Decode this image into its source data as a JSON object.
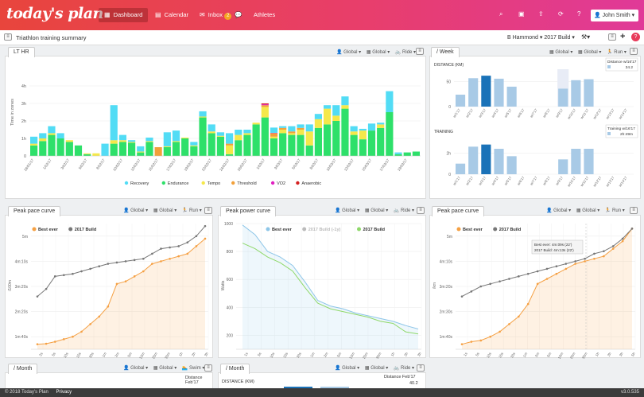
{
  "nav": {
    "logo": "today's plan",
    "dashboard": "Dashboard",
    "calendar": "Calendar",
    "inbox": "Inbox",
    "inbox_count": "2",
    "athletes": "Athletes",
    "user": "John Smith"
  },
  "header": {
    "title": "Triathlon training summary",
    "athlete": "B Hammond",
    "plan": "2017 Build"
  },
  "controls": {
    "global": "Global",
    "ride": "Ride",
    "run": "Run",
    "swim": "Swim"
  },
  "lt_panel": {
    "tab": "LT HR",
    "ylabel": "Time in zones",
    "chart_data": {
      "type": "bar",
      "stacked": true,
      "categories": [
        "28/01/17",
        "29/01/17",
        "1/02/17",
        "2/02/17",
        "3/02/17",
        "4/02/17",
        "5/02/17",
        "7/02/17",
        "8/02/17",
        "9/02/17",
        "10/02/17",
        "11/02/17",
        "12/02/17",
        "14/02/17",
        "15/02/17",
        "16/02/17",
        "17/02/17",
        "18/02/17",
        "19/02/17",
        "21/02/17",
        "22/02/17",
        "23/02/17",
        "24/02/17",
        "25/02/17",
        "26/02/17",
        "28/02/17",
        "1/03/17",
        "2/03/17",
        "3/03/17",
        "4/03/17",
        "5/03/17",
        "7/03/17",
        "8/03/17",
        "9/03/17",
        "10/03/17",
        "11/03/17",
        "12/03/17",
        "14/03/17",
        "15/03/17",
        "16/03/17",
        "17/03/17",
        "18/03/17",
        "19/03/17",
        "20/03/17"
      ],
      "tick_labels": [
        "28/01/17",
        "",
        "1/02/17",
        "",
        "3/02/17",
        "",
        "5/02/17",
        "",
        "8/02/17",
        "",
        "10/02/17",
        "",
        "12/02/17",
        "",
        "15/02/17",
        "",
        "17/02/17",
        "",
        "19/02/17",
        "",
        "22/02/17",
        "",
        "24/02/17",
        "",
        "26/02/17",
        "",
        "1/03/17",
        "",
        "3/03/17",
        "",
        "5/03/17",
        "",
        "8/03/17",
        "",
        "10/03/17",
        "",
        "12/03/17",
        "",
        "15/03/17",
        "",
        "17/03/17",
        "",
        "19/03/17",
        ""
      ],
      "yticks": [
        {
          "v": 0,
          "l": "0"
        },
        {
          "v": 1,
          "l": "1h"
        },
        {
          "v": 2,
          "l": "2h"
        },
        {
          "v": 3,
          "l": "3h"
        },
        {
          "v": 4,
          "l": "4h"
        }
      ],
      "ylim": [
        0,
        5
      ],
      "series": [
        {
          "name": "Endurance",
          "color": "#2ee06a",
          "values": [
            0.6,
            0.85,
            1.2,
            1.0,
            0.8,
            0.6,
            0.1,
            0,
            0,
            0.7,
            0.8,
            0.75,
            0.2,
            0.8,
            0,
            0.5,
            0.8,
            1.0,
            0.55,
            2.2,
            1.3,
            1.1,
            0.1,
            0.9,
            1.2,
            1.8,
            2.2,
            1.0,
            1.3,
            1.2,
            1.2,
            0.6,
            1.6,
            1.8,
            2.0,
            2.7,
            1.2,
            0.95,
            1.45,
            1.6,
            2.5,
            0.1,
            0.2,
            0.25
          ],
          "name_2": ""
        },
        {
          "name": "Tempo",
          "color": "#f5e84a",
          "values": [
            0.1,
            0.15,
            0.1,
            0.0,
            0.1,
            0.0,
            0.05,
            0.15,
            0,
            0.2,
            0.1,
            0.05,
            0.05,
            0.05,
            0,
            0.05,
            0.05,
            0.05,
            0.05,
            0.05,
            0.1,
            0.05,
            0.5,
            0.3,
            0.1,
            0.1,
            0.6,
            0.1,
            0.2,
            0.1,
            0.3,
            0.8,
            0.5,
            0.9,
            0.3,
            0.2,
            0.2,
            0.5,
            0,
            0.2,
            0,
            0,
            0,
            0
          ]
        },
        {
          "name": "Threshold",
          "color": "#f2a03a",
          "values": [
            0,
            0,
            0,
            0,
            0,
            0,
            0,
            0,
            0,
            0,
            0,
            0,
            0,
            0,
            0.5,
            0,
            0,
            0,
            0,
            0,
            0,
            0,
            0.1,
            0,
            0,
            0,
            0.1,
            0.2,
            0.1,
            0.1,
            0.1,
            0,
            0,
            0,
            0,
            0,
            0,
            0,
            0,
            0,
            0,
            0,
            0,
            0
          ]
        },
        {
          "name": "VO2",
          "color": "#e020c0",
          "values": [
            0,
            0,
            0,
            0,
            0,
            0,
            0,
            0,
            0,
            0,
            0,
            0,
            0,
            0,
            0,
            0,
            0,
            0,
            0,
            0,
            0,
            0,
            0,
            0,
            0,
            0,
            0.05,
            0.02,
            0,
            0,
            0,
            0,
            0,
            0,
            0,
            0,
            0,
            0,
            0,
            0,
            0,
            0,
            0,
            0
          ]
        },
        {
          "name": "Anaerobic",
          "color": "#d42020",
          "values": [
            0,
            0,
            0,
            0,
            0,
            0,
            0,
            0,
            0,
            0,
            0,
            0,
            0,
            0,
            0,
            0,
            0,
            0,
            0,
            0,
            0,
            0,
            0,
            0,
            0,
            0,
            0.05,
            0,
            0,
            0,
            0,
            0,
            0,
            0,
            0,
            0,
            0,
            0,
            0,
            0,
            0,
            0,
            0,
            0
          ]
        },
        {
          "name": "Recovery",
          "color": "#52dcf5",
          "values": [
            0.4,
            0.3,
            0.4,
            0.3,
            0,
            0,
            0,
            0,
            0.7,
            2.0,
            0.3,
            0.1,
            0.3,
            0.2,
            0,
            0.8,
            0.6,
            0.0,
            0.2,
            0.3,
            0.4,
            0.2,
            0.6,
            0.3,
            0.2,
            0,
            0,
            0.3,
            0.1,
            0.3,
            0.2,
            0.4,
            0.3,
            0.2,
            0.6,
            0.5,
            0.3,
            0.1,
            0.4,
            0.1,
            1.2,
            0.1,
            0,
            0
          ]
        }
      ],
      "legend": [
        "Recovery",
        "Endurance",
        "Tempo",
        "Threshold",
        "VO2",
        "Anaerobic"
      ]
    }
  },
  "week_panel": {
    "tab": "/ Week",
    "distance": {
      "label": "DISTANCE (KM)",
      "tooltip_title": "Distance w/16'17",
      "tooltip_value": "34.2",
      "chart_data": {
        "type": "bar",
        "categories": [
          "w/1'17",
          "w/2'17",
          "w/3'17",
          "w/4'17",
          "w/5'17",
          "w/6'17",
          "w/7'17",
          "w/8'17",
          "w/9'17",
          "w/10'17",
          "w/11'17",
          "w/12'17",
          "w/13'17",
          "w/14'17"
        ],
        "values": [
          24,
          57,
          62,
          56,
          40,
          0,
          0,
          0,
          36,
          53,
          55,
          0,
          0,
          0
        ],
        "highlight": 2,
        "hover": 8,
        "yticks": [
          {
            "v": 0,
            "l": "0"
          },
          {
            "v": 50,
            "l": "50"
          }
        ],
        "ylim": [
          0,
          75
        ]
      }
    },
    "training": {
      "label": "TRAINING",
      "tooltip_title": "Training w/16'17",
      "tooltip_value": "2h:49m",
      "chart_data": {
        "type": "bar",
        "categories": [
          "w/1'17",
          "w/2'17",
          "w/3'17",
          "w/4'17",
          "w/5'17",
          "w/6'17",
          "w/7'17",
          "w/8'17",
          "w/9'17",
          "w/10'17",
          "w/11'17",
          "w/12'17",
          "w/13'17",
          "w/14'17"
        ],
        "values": [
          1.0,
          2.6,
          2.8,
          2.4,
          1.7,
          0,
          0,
          0,
          1.4,
          2.4,
          2.4,
          0,
          0,
          0
        ],
        "highlight": 2,
        "yticks": [
          {
            "v": 0,
            "l": "0"
          },
          {
            "v": 2,
            "l": "2h"
          }
        ],
        "ylim": [
          0,
          3.6
        ]
      }
    }
  },
  "pace1": {
    "tab": "Peak pace curve",
    "legend": [
      "Best ever",
      "2017 Build"
    ],
    "ylabel": "/100m",
    "yticks": [
      {
        "v": 1,
        "l": "1m:40s"
      },
      {
        "v": 2,
        "l": "2m:20s"
      },
      {
        "v": 3,
        "l": "3m:20s"
      },
      {
        "v": 4,
        "l": "4m:10s"
      },
      {
        "v": 5,
        "l": "5m"
      }
    ],
    "xticks": [
      "2s",
      "5s",
      "10s",
      "15s",
      "30s",
      "1m",
      "2m",
      "5m",
      "10m",
      "20m",
      "30m",
      "1h",
      "2h",
      "3h"
    ],
    "chart_data": {
      "type": "line",
      "ylim": [
        0.5,
        5.5
      ],
      "series": [
        {
          "name": "Best ever",
          "color": "#f5a043",
          "fill": true,
          "values": [
            0.7,
            0.72,
            0.8,
            0.9,
            1.0,
            1.2,
            1.5,
            1.8,
            2.2,
            3.1,
            3.2,
            3.4,
            3.6,
            3.9,
            4.0,
            4.1,
            4.2,
            4.3,
            4.6,
            4.9
          ]
        },
        {
          "name": "2017 Build",
          "color": "#777",
          "fill": false,
          "values": [
            2.6,
            2.9,
            3.4,
            3.45,
            3.5,
            3.6,
            3.7,
            3.8,
            3.9,
            3.95,
            4.0,
            4.05,
            4.1,
            4.3,
            4.5,
            4.55,
            4.6,
            4.75,
            5.0,
            5.4
          ]
        }
      ]
    }
  },
  "power": {
    "tab": "Peak power curve",
    "legend": [
      "Best ever",
      "2017 Build (-1y)",
      "2017 Build"
    ],
    "ylabel": "Watts",
    "yticks": [
      {
        "v": 200,
        "l": "200"
      },
      {
        "v": 400,
        "l": "400"
      },
      {
        "v": 600,
        "l": "600"
      },
      {
        "v": 800,
        "l": "800"
      },
      {
        "v": 1000,
        "l": "1000"
      }
    ],
    "xticks": [
      "1s",
      "5s",
      "10s",
      "15s",
      "30s",
      "1m",
      "2m",
      "5m",
      "10m",
      "20m",
      "30m",
      "1h",
      "2h",
      "3h"
    ],
    "chart_data": {
      "type": "line",
      "ylim": [
        100,
        1000
      ],
      "series": [
        {
          "name": "Best ever",
          "color": "#8ec6e8",
          "fill": true,
          "values": [
            990,
            920,
            800,
            760,
            700,
            580,
            450,
            410,
            390,
            360,
            340,
            320,
            300,
            270,
            245
          ]
        },
        {
          "name": "2017 Build",
          "color": "#8fd86a",
          "fill": false,
          "values": [
            860,
            820,
            760,
            720,
            660,
            540,
            430,
            390,
            370,
            350,
            330,
            300,
            285,
            225,
            210
          ]
        }
      ]
    }
  },
  "pace2": {
    "tab": "Peak pace curve",
    "legend": [
      "Best ever",
      "2017 Build"
    ],
    "ylabel": "/km",
    "tooltip_best": "Best ever: 4m:09s (22')",
    "tooltip_build": "2017 Build: 4m:13s (22')",
    "yticks": [
      {
        "v": 1,
        "l": "1m:40s"
      },
      {
        "v": 2,
        "l": "2m:30s"
      },
      {
        "v": 3,
        "l": "3m:20s"
      },
      {
        "v": 4,
        "l": "4m:10s"
      },
      {
        "v": 5,
        "l": "5m"
      }
    ],
    "xticks": [
      "1s",
      "5s",
      "10s",
      "15s",
      "30s",
      "1m",
      "2m",
      "5m",
      "10m",
      "20m",
      "30m",
      "1h",
      "2h",
      "3h",
      "5h"
    ],
    "chart_data": {
      "type": "line",
      "ylim": [
        0.5,
        5.5
      ],
      "series": [
        {
          "name": "Best ever",
          "color": "#f5a043",
          "fill": true,
          "values": [
            0.7,
            0.8,
            0.85,
            1.0,
            1.2,
            1.5,
            1.8,
            2.3,
            3.1,
            3.3,
            3.5,
            3.7,
            3.9,
            4.0,
            4.1,
            4.2,
            4.5,
            4.8,
            5.3
          ]
        },
        {
          "name": "2017 Build",
          "color": "#777",
          "fill": false,
          "values": [
            2.6,
            2.8,
            3.0,
            3.1,
            3.2,
            3.3,
            3.4,
            3.5,
            3.6,
            3.7,
            3.8,
            3.9,
            4.0,
            4.1,
            4.3,
            4.4,
            4.6,
            4.9,
            5.3
          ]
        }
      ]
    }
  },
  "month1": {
    "tab": "/ Month",
    "tooltip_title": "Distance Feb'17",
    "tooltip_value": ""
  },
  "month2": {
    "tab": "/ Month",
    "label": "DISTANCE (KM)",
    "tooltip_title": "Distance Feb'17",
    "tooltip_value": "40.2"
  },
  "footer": {
    "copyright": "© 2018 Today's Plan",
    "privacy": "Privacy",
    "version": "v3.0.535"
  }
}
